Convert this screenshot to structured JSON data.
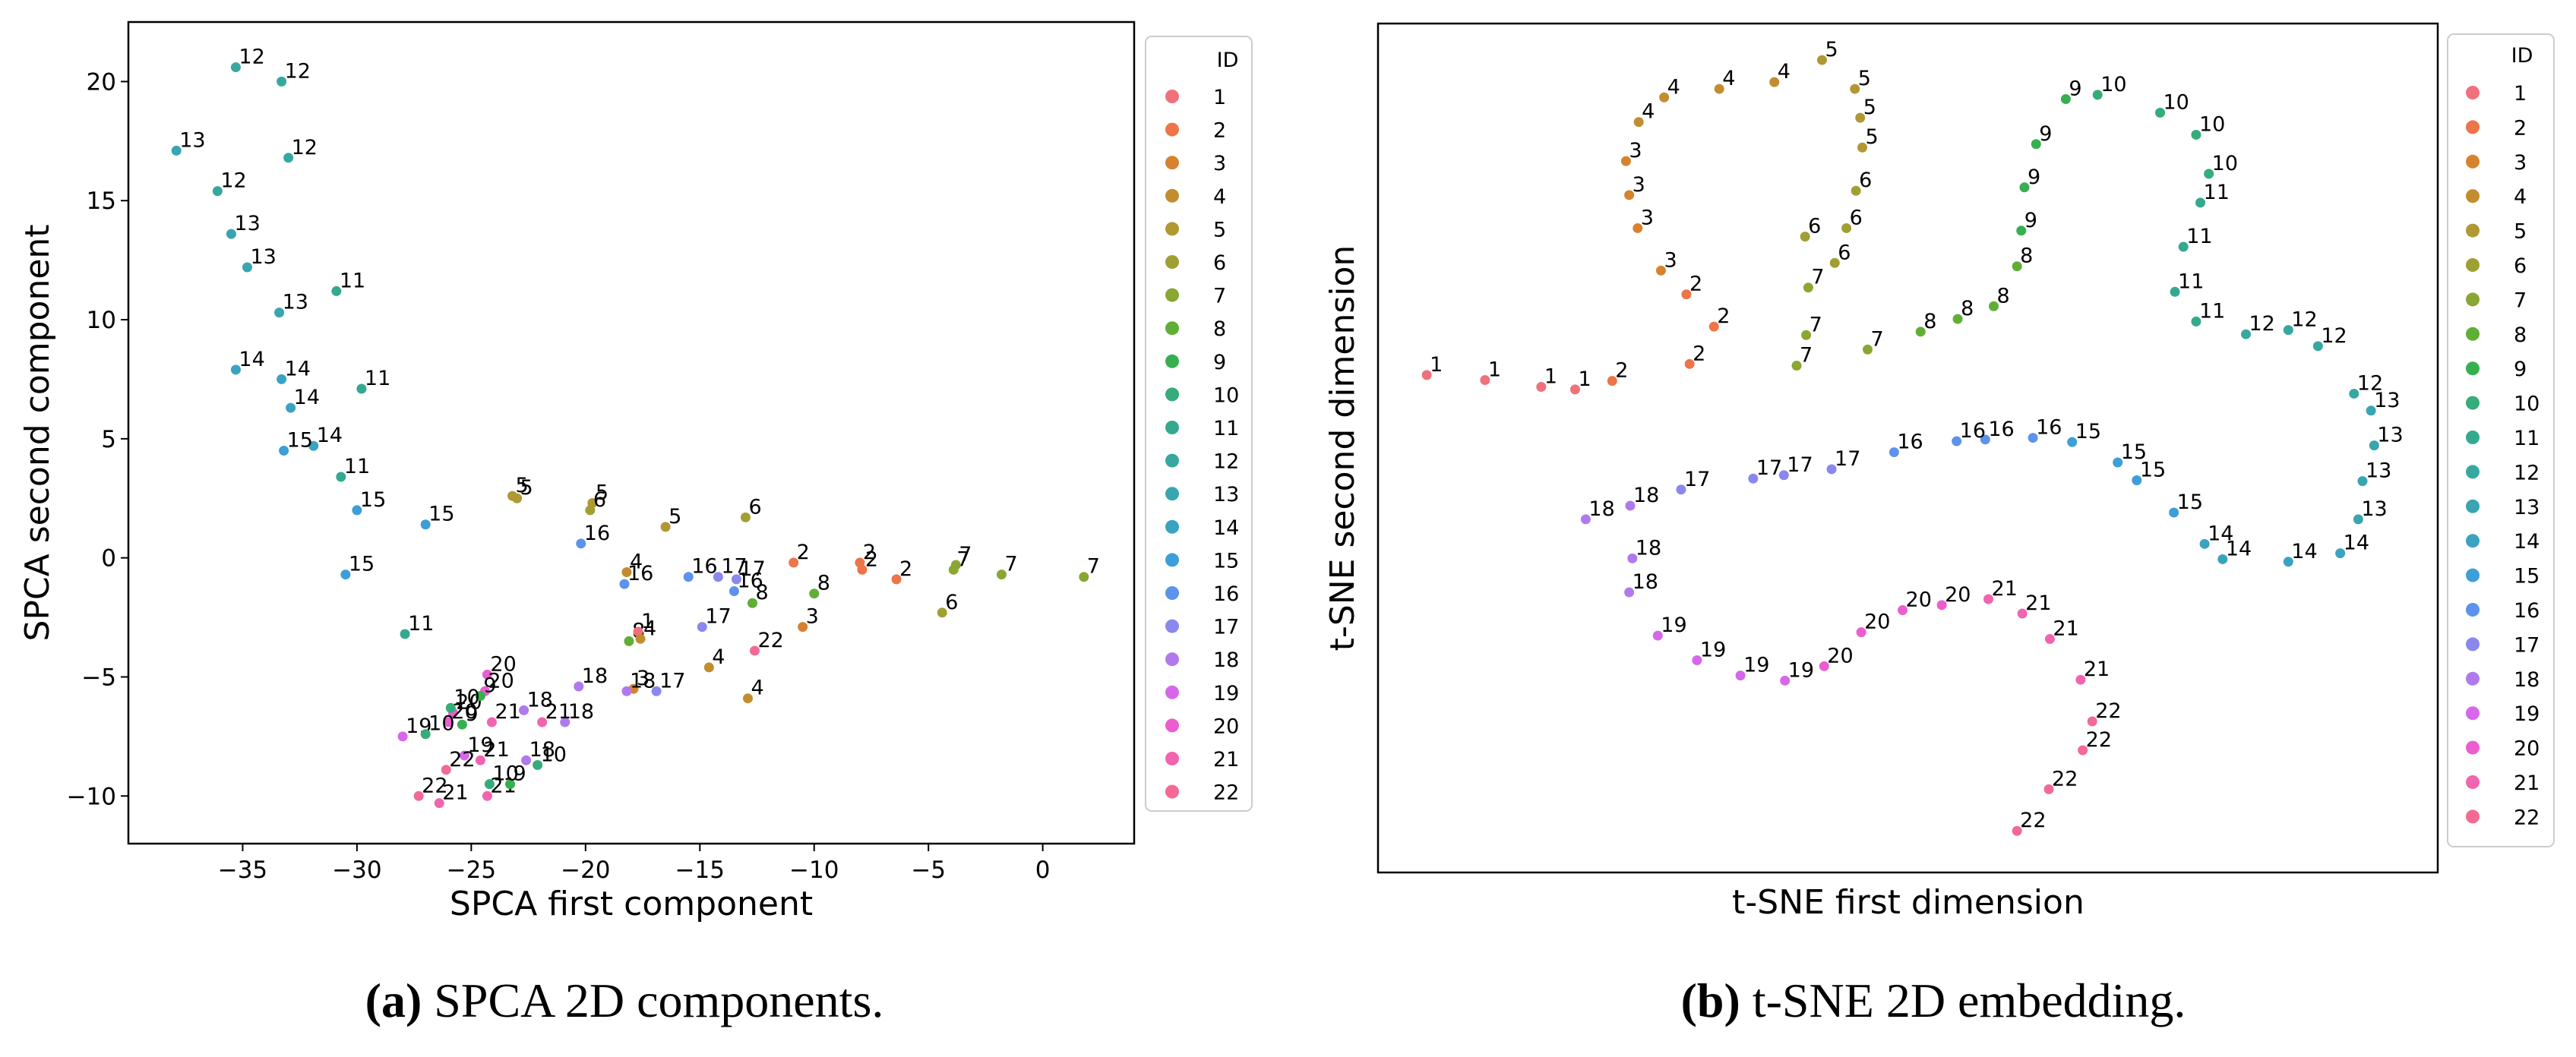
{
  "palette": [
    "#f0717c",
    "#ee7449",
    "#d7822f",
    "#c18d2e",
    "#b19832",
    "#a09f33",
    "#8aa633",
    "#5fae35",
    "#36b04f",
    "#35ac79",
    "#35a98f",
    "#36a8a0",
    "#38a5b0",
    "#3aa3c1",
    "#3d9ed8",
    "#5d93ea",
    "#8a88ed",
    "#b07aec",
    "#d667ea",
    "#ec5dcf",
    "#f164b0",
    "#f36a94"
  ],
  "chart_data": [
    {
      "type": "scatter",
      "xlabel": "SPCA first component",
      "ylabel": "SPCA second component",
      "xlim": [
        -40,
        4
      ],
      "ylim": [
        -12,
        22.5
      ],
      "xticks": [
        -35,
        -30,
        -25,
        -20,
        -15,
        -10,
        -5,
        0
      ],
      "xtick_labels": [
        "−35",
        "−30",
        "−25",
        "−20",
        "−15",
        "−10",
        "−5",
        "0"
      ],
      "yticks": [
        -10,
        -5,
        0,
        5,
        10,
        15,
        20
      ],
      "ytick_labels": [
        "−10",
        "−5",
        "0",
        "5",
        "10",
        "15",
        "20"
      ],
      "show_ticks": true,
      "legend": {
        "title": "ID",
        "location": "right outside",
        "labels": [
          "1",
          "2",
          "3",
          "4",
          "5",
          "6",
          "7",
          "8",
          "9",
          "10",
          "11",
          "12",
          "13",
          "14",
          "15",
          "16",
          "17",
          "18",
          "19",
          "20",
          "21",
          "22"
        ]
      },
      "points": [
        {
          "x": -35.3,
          "y": 20.6,
          "id": 12
        },
        {
          "x": -33.3,
          "y": 20.0,
          "id": 12
        },
        {
          "x": -33.0,
          "y": 16.8,
          "id": 12
        },
        {
          "x": -36.1,
          "y": 15.4,
          "id": 12
        },
        {
          "x": -37.9,
          "y": 17.1,
          "id": 13
        },
        {
          "x": -35.5,
          "y": 13.6,
          "id": 13
        },
        {
          "x": -34.8,
          "y": 12.2,
          "id": 13
        },
        {
          "x": -33.4,
          "y": 10.3,
          "id": 13
        },
        {
          "x": -30.9,
          "y": 11.2,
          "id": 11
        },
        {
          "x": -29.8,
          "y": 7.1,
          "id": 11
        },
        {
          "x": -30.7,
          "y": 3.4,
          "id": 11
        },
        {
          "x": -27.9,
          "y": -3.2,
          "id": 11
        },
        {
          "x": -35.3,
          "y": 7.9,
          "id": 14
        },
        {
          "x": -33.3,
          "y": 7.5,
          "id": 14
        },
        {
          "x": -32.9,
          "y": 6.3,
          "id": 14
        },
        {
          "x": -31.9,
          "y": 4.7,
          "id": 14
        },
        {
          "x": -33.2,
          "y": 4.5,
          "id": 15
        },
        {
          "x": -30.0,
          "y": 2.0,
          "id": 15
        },
        {
          "x": -27.0,
          "y": 1.4,
          "id": 15
        },
        {
          "x": -30.5,
          "y": -0.7,
          "id": 15
        },
        {
          "x": -23.2,
          "y": 2.6,
          "id": 5
        },
        {
          "x": -23.0,
          "y": 2.5,
          "id": 5
        },
        {
          "x": -19.7,
          "y": 2.3,
          "id": 5
        },
        {
          "x": -16.5,
          "y": 1.3,
          "id": 5
        },
        {
          "x": -19.8,
          "y": 2.0,
          "id": 6
        },
        {
          "x": -13.0,
          "y": 1.7,
          "id": 6
        },
        {
          "x": -4.4,
          "y": -2.3,
          "id": 6
        },
        {
          "x": -3.8,
          "y": -0.3,
          "id": 7
        },
        {
          "x": -1.8,
          "y": -0.7,
          "id": 7
        },
        {
          "x": 1.8,
          "y": -0.8,
          "id": 7
        },
        {
          "x": -3.9,
          "y": -0.5,
          "id": 7
        },
        {
          "x": -10.9,
          "y": -0.2,
          "id": 2
        },
        {
          "x": -8.0,
          "y": -0.2,
          "id": 2
        },
        {
          "x": -6.4,
          "y": -0.9,
          "id": 2
        },
        {
          "x": -7.9,
          "y": -0.5,
          "id": 2
        },
        {
          "x": -10.0,
          "y": -1.5,
          "id": 8
        },
        {
          "x": -12.7,
          "y": -1.9,
          "id": 8
        },
        {
          "x": -18.1,
          "y": -3.5,
          "id": 8
        },
        {
          "x": -14.2,
          "y": -0.8,
          "id": 17
        },
        {
          "x": -13.4,
          "y": -0.9,
          "id": 17
        },
        {
          "x": -14.9,
          "y": -2.9,
          "id": 17
        },
        {
          "x": -16.9,
          "y": -5.6,
          "id": 17
        },
        {
          "x": -20.2,
          "y": 0.6,
          "id": 16
        },
        {
          "x": -15.5,
          "y": -0.8,
          "id": 16
        },
        {
          "x": -13.5,
          "y": -1.4,
          "id": 16
        },
        {
          "x": -18.3,
          "y": -1.1,
          "id": 16
        },
        {
          "x": -17.7,
          "y": -3.1,
          "id": 1
        },
        {
          "x": -18.2,
          "y": -0.6,
          "id": 4
        },
        {
          "x": -17.6,
          "y": -3.4,
          "id": 4
        },
        {
          "x": -14.6,
          "y": -4.6,
          "id": 4
        },
        {
          "x": -12.9,
          "y": -5.9,
          "id": 4
        },
        {
          "x": -10.5,
          "y": -2.9,
          "id": 3
        },
        {
          "x": -17.9,
          "y": -5.5,
          "id": 3
        },
        {
          "x": -20.3,
          "y": -5.4,
          "id": 18
        },
        {
          "x": -18.2,
          "y": -5.6,
          "id": 18
        },
        {
          "x": -22.7,
          "y": -6.4,
          "id": 18
        },
        {
          "x": -20.9,
          "y": -6.9,
          "id": 18
        },
        {
          "x": -22.6,
          "y": -8.5,
          "id": 18
        },
        {
          "x": -28.0,
          "y": -7.5,
          "id": 19
        },
        {
          "x": -25.3,
          "y": -8.3,
          "id": 19
        },
        {
          "x": -24.3,
          "y": -4.9,
          "id": 20
        },
        {
          "x": -24.4,
          "y": -5.6,
          "id": 20
        },
        {
          "x": -25.8,
          "y": -6.5,
          "id": 20
        },
        {
          "x": -26.0,
          "y": -6.9,
          "id": 20
        },
        {
          "x": -24.1,
          "y": -6.9,
          "id": 21
        },
        {
          "x": -21.9,
          "y": -6.9,
          "id": 21
        },
        {
          "x": -24.6,
          "y": -8.5,
          "id": 21
        },
        {
          "x": -26.4,
          "y": -10.3,
          "id": 21
        },
        {
          "x": -24.3,
          "y": -10.0,
          "id": 21
        },
        {
          "x": -26.1,
          "y": -8.9,
          "id": 22
        },
        {
          "x": -12.6,
          "y": -3.9,
          "id": 22
        },
        {
          "x": -27.3,
          "y": -10.0,
          "id": 22
        },
        {
          "x": -24.6,
          "y": -5.8,
          "id": 9
        },
        {
          "x": -25.4,
          "y": -7.0,
          "id": 9
        },
        {
          "x": -23.3,
          "y": -9.5,
          "id": 9
        },
        {
          "x": -27.0,
          "y": -7.4,
          "id": 10
        },
        {
          "x": -25.9,
          "y": -6.3,
          "id": 10
        },
        {
          "x": -22.1,
          "y": -8.7,
          "id": 10
        },
        {
          "x": -24.2,
          "y": -9.5,
          "id": 10
        }
      ]
    },
    {
      "type": "scatter",
      "xlabel": "t-SNE first dimension",
      "ylabel": "t-SNE second dimension",
      "xlim": [
        0,
        100
      ],
      "ylim": [
        0,
        100
      ],
      "show_ticks": false,
      "legend": {
        "title": "ID",
        "location": "right outside",
        "labels": [
          "1",
          "2",
          "3",
          "4",
          "5",
          "6",
          "7",
          "8",
          "9",
          "10",
          "11",
          "12",
          "13",
          "14",
          "15",
          "16",
          "17",
          "18",
          "19",
          "20",
          "21",
          "22"
        ]
      },
      "points": [
        {
          "x": 4.6,
          "y": 58.6,
          "id": 1
        },
        {
          "x": 10.1,
          "y": 58.0,
          "id": 1
        },
        {
          "x": 15.4,
          "y": 57.2,
          "id": 1
        },
        {
          "x": 18.6,
          "y": 56.9,
          "id": 1
        },
        {
          "x": 22.1,
          "y": 57.9,
          "id": 2
        },
        {
          "x": 29.4,
          "y": 59.9,
          "id": 2
        },
        {
          "x": 31.7,
          "y": 64.3,
          "id": 2
        },
        {
          "x": 29.1,
          "y": 68.1,
          "id": 2
        },
        {
          "x": 26.7,
          "y": 70.9,
          "id": 3
        },
        {
          "x": 24.5,
          "y": 75.9,
          "id": 3
        },
        {
          "x": 23.7,
          "y": 79.8,
          "id": 3
        },
        {
          "x": 23.4,
          "y": 83.8,
          "id": 3
        },
        {
          "x": 24.6,
          "y": 88.4,
          "id": 4
        },
        {
          "x": 27.0,
          "y": 91.3,
          "id": 4
        },
        {
          "x": 32.2,
          "y": 92.3,
          "id": 4
        },
        {
          "x": 37.4,
          "y": 93.1,
          "id": 4
        },
        {
          "x": 41.9,
          "y": 95.7,
          "id": 5
        },
        {
          "x": 45.0,
          "y": 92.3,
          "id": 5
        },
        {
          "x": 45.5,
          "y": 88.9,
          "id": 5
        },
        {
          "x": 45.7,
          "y": 85.4,
          "id": 5
        },
        {
          "x": 45.1,
          "y": 80.3,
          "id": 6
        },
        {
          "x": 44.2,
          "y": 75.9,
          "id": 6
        },
        {
          "x": 43.1,
          "y": 71.8,
          "id": 6
        },
        {
          "x": 40.3,
          "y": 74.9,
          "id": 6
        },
        {
          "x": 40.6,
          "y": 68.9,
          "id": 7
        },
        {
          "x": 40.4,
          "y": 63.3,
          "id": 7
        },
        {
          "x": 39.5,
          "y": 59.7,
          "id": 7
        },
        {
          "x": 46.2,
          "y": 61.6,
          "id": 7
        },
        {
          "x": 51.2,
          "y": 63.7,
          "id": 8
        },
        {
          "x": 54.7,
          "y": 65.2,
          "id": 8
        },
        {
          "x": 58.1,
          "y": 66.7,
          "id": 8
        },
        {
          "x": 60.3,
          "y": 71.4,
          "id": 8
        },
        {
          "x": 60.7,
          "y": 75.6,
          "id": 9
        },
        {
          "x": 61.0,
          "y": 80.7,
          "id": 9
        },
        {
          "x": 62.1,
          "y": 85.8,
          "id": 9
        },
        {
          "x": 64.9,
          "y": 91.1,
          "id": 9
        },
        {
          "x": 67.9,
          "y": 91.6,
          "id": 10
        },
        {
          "x": 73.8,
          "y": 89.5,
          "id": 10
        },
        {
          "x": 77.2,
          "y": 86.9,
          "id": 10
        },
        {
          "x": 78.4,
          "y": 82.3,
          "id": 10
        },
        {
          "x": 77.6,
          "y": 78.9,
          "id": 11
        },
        {
          "x": 76.0,
          "y": 73.7,
          "id": 11
        },
        {
          "x": 75.2,
          "y": 68.4,
          "id": 11
        },
        {
          "x": 77.2,
          "y": 64.9,
          "id": 11
        },
        {
          "x": 81.9,
          "y": 63.4,
          "id": 12
        },
        {
          "x": 85.9,
          "y": 63.9,
          "id": 12
        },
        {
          "x": 88.7,
          "y": 62.0,
          "id": 12
        },
        {
          "x": 92.1,
          "y": 56.4,
          "id": 12
        },
        {
          "x": 93.7,
          "y": 54.4,
          "id": 13
        },
        {
          "x": 94.0,
          "y": 50.3,
          "id": 13
        },
        {
          "x": 92.9,
          "y": 46.1,
          "id": 13
        },
        {
          "x": 92.5,
          "y": 41.6,
          "id": 13
        },
        {
          "x": 90.8,
          "y": 37.6,
          "id": 14
        },
        {
          "x": 85.9,
          "y": 36.6,
          "id": 14
        },
        {
          "x": 79.7,
          "y": 36.9,
          "id": 14
        },
        {
          "x": 78.0,
          "y": 38.7,
          "id": 14
        },
        {
          "x": 75.1,
          "y": 42.4,
          "id": 15
        },
        {
          "x": 71.6,
          "y": 46.2,
          "id": 15
        },
        {
          "x": 69.8,
          "y": 48.3,
          "id": 15
        },
        {
          "x": 65.5,
          "y": 50.7,
          "id": 15
        },
        {
          "x": 61.8,
          "y": 51.2,
          "id": 16
        },
        {
          "x": 57.3,
          "y": 51.0,
          "id": 16
        },
        {
          "x": 54.6,
          "y": 50.8,
          "id": 16
        },
        {
          "x": 48.7,
          "y": 49.5,
          "id": 16
        },
        {
          "x": 42.8,
          "y": 47.5,
          "id": 17
        },
        {
          "x": 38.3,
          "y": 46.8,
          "id": 17
        },
        {
          "x": 35.4,
          "y": 46.4,
          "id": 17
        },
        {
          "x": 28.6,
          "y": 45.1,
          "id": 17
        },
        {
          "x": 23.8,
          "y": 43.2,
          "id": 18
        },
        {
          "x": 19.6,
          "y": 41.6,
          "id": 18
        },
        {
          "x": 24.0,
          "y": 37.0,
          "id": 18
        },
        {
          "x": 23.7,
          "y": 33.0,
          "id": 18
        },
        {
          "x": 26.4,
          "y": 27.9,
          "id": 19
        },
        {
          "x": 30.1,
          "y": 25.0,
          "id": 19
        },
        {
          "x": 34.2,
          "y": 23.2,
          "id": 19
        },
        {
          "x": 38.4,
          "y": 22.6,
          "id": 19
        },
        {
          "x": 42.1,
          "y": 24.3,
          "id": 20
        },
        {
          "x": 45.6,
          "y": 28.3,
          "id": 20
        },
        {
          "x": 49.5,
          "y": 30.9,
          "id": 20
        },
        {
          "x": 53.2,
          "y": 31.5,
          "id": 20
        },
        {
          "x": 57.6,
          "y": 32.2,
          "id": 21
        },
        {
          "x": 60.8,
          "y": 30.5,
          "id": 21
        },
        {
          "x": 63.4,
          "y": 27.5,
          "id": 21
        },
        {
          "x": 66.3,
          "y": 22.7,
          "id": 21
        },
        {
          "x": 67.4,
          "y": 17.8,
          "id": 22
        },
        {
          "x": 66.5,
          "y": 14.4,
          "id": 22
        },
        {
          "x": 63.3,
          "y": 9.8,
          "id": 22
        },
        {
          "x": 60.3,
          "y": 4.9,
          "id": 22
        }
      ]
    }
  ],
  "captions": [
    {
      "letter": "(a)",
      "text": " SPCA 2D components."
    },
    {
      "letter": "(b)",
      "text": " t-SNE 2D embedding."
    }
  ]
}
